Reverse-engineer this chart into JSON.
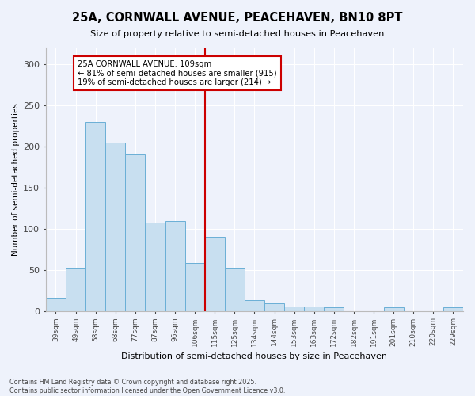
{
  "title": "25A, CORNWALL AVENUE, PEACEHAVEN, BN10 8PT",
  "subtitle": "Size of property relative to semi-detached houses in Peacehaven",
  "xlabel": "Distribution of semi-detached houses by size in Peacehaven",
  "ylabel": "Number of semi-detached properties",
  "bar_labels": [
    "39sqm",
    "49sqm",
    "58sqm",
    "68sqm",
    "77sqm",
    "87sqm",
    "96sqm",
    "106sqm",
    "115sqm",
    "125sqm",
    "134sqm",
    "144sqm",
    "153sqm",
    "163sqm",
    "172sqm",
    "182sqm",
    "191sqm",
    "201sqm",
    "210sqm",
    "220sqm",
    "229sqm"
  ],
  "bar_values": [
    16,
    52,
    230,
    205,
    190,
    107,
    109,
    58,
    90,
    52,
    13,
    9,
    5,
    5,
    4,
    0,
    0,
    4,
    0,
    0,
    4
  ],
  "bar_color": "#c8dff0",
  "bar_edge_color": "#6aafd6",
  "vline_x": 7.5,
  "annotation_title": "25A CORNWALL AVENUE: 109sqm",
  "annotation_line1": "← 81% of semi-detached houses are smaller (915)",
  "annotation_line2": "19% of semi-detached houses are larger (214) →",
  "annotation_box_color": "#ffffff",
  "annotation_box_edge": "#cc0000",
  "vline_color": "#cc0000",
  "ylim": [
    0,
    320
  ],
  "yticks": [
    0,
    50,
    100,
    150,
    200,
    250,
    300
  ],
  "background_color": "#eef2fb",
  "grid_color": "#ffffff",
  "footer_line1": "Contains HM Land Registry data © Crown copyright and database right 2025.",
  "footer_line2": "Contains public sector information licensed under the Open Government Licence v3.0."
}
